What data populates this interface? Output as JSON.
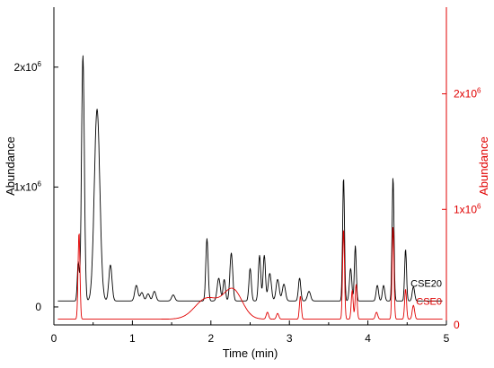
{
  "chart_data": {
    "type": "line",
    "xlabel": "Time (min)",
    "xlim": [
      0,
      5
    ],
    "xticks": [
      {
        "value": 0,
        "label": "0"
      },
      {
        "value": 1,
        "label": "1"
      },
      {
        "value": 2,
        "label": "2"
      },
      {
        "value": 3,
        "label": "3"
      },
      {
        "value": 4,
        "label": "4"
      },
      {
        "value": 5,
        "label": "5"
      }
    ],
    "y_left": {
      "label": "Abundance",
      "color": "#000000",
      "ylim": [
        -150000,
        2500000
      ],
      "ticks": [
        {
          "value": 0,
          "label": "0",
          "exp": ""
        },
        {
          "value": 1000000,
          "label": "1x10",
          "exp": "6"
        },
        {
          "value": 2000000,
          "label": "2x10",
          "exp": "6"
        }
      ]
    },
    "y_right": {
      "label": "Abundance",
      "color": "#e00000",
      "ylim": [
        0,
        2750000
      ],
      "ticks": [
        {
          "value": 0,
          "label": "0",
          "exp": ""
        },
        {
          "value": 1000000,
          "label": "1x10",
          "exp": "6"
        },
        {
          "value": 2000000,
          "label": "2x10",
          "exp": "6"
        }
      ]
    },
    "series": [
      {
        "name": "CSE20",
        "axis": "left",
        "color": "#000000",
        "baseline": 50000,
        "peaks": [
          [
            0.31,
            320000,
            0.012
          ],
          [
            0.37,
            2050000,
            0.018
          ],
          [
            0.55,
            1600000,
            0.035
          ],
          [
            0.72,
            300000,
            0.02
          ],
          [
            1.05,
            130000,
            0.02
          ],
          [
            1.12,
            70000,
            0.02
          ],
          [
            1.2,
            60000,
            0.02
          ],
          [
            1.28,
            80000,
            0.02
          ],
          [
            1.52,
            50000,
            0.02
          ],
          [
            1.95,
            520000,
            0.015
          ],
          [
            2.1,
            190000,
            0.02
          ],
          [
            2.17,
            180000,
            0.015
          ],
          [
            2.26,
            400000,
            0.018
          ],
          [
            2.5,
            270000,
            0.015
          ],
          [
            2.62,
            380000,
            0.015
          ],
          [
            2.68,
            380000,
            0.015
          ],
          [
            2.75,
            230000,
            0.02
          ],
          [
            2.85,
            180000,
            0.02
          ],
          [
            2.93,
            140000,
            0.02
          ],
          [
            3.13,
            190000,
            0.015
          ],
          [
            3.25,
            80000,
            0.02
          ],
          [
            3.69,
            1030000,
            0.012
          ],
          [
            3.78,
            270000,
            0.015
          ],
          [
            3.84,
            460000,
            0.012
          ],
          [
            4.12,
            130000,
            0.015
          ],
          [
            4.2,
            130000,
            0.015
          ],
          [
            4.32,
            1030000,
            0.012
          ],
          [
            4.48,
            430000,
            0.012
          ],
          [
            4.58,
            120000,
            0.015
          ]
        ]
      },
      {
        "name": "CSE0",
        "axis": "right",
        "color": "#e00000",
        "baseline": 50000,
        "peaks": [
          [
            0.32,
            750000,
            0.012
          ],
          [
            1.95,
            180000,
            0.15
          ],
          [
            2.28,
            250000,
            0.12
          ],
          [
            2.72,
            60000,
            0.015
          ],
          [
            2.85,
            50000,
            0.015
          ],
          [
            3.14,
            200000,
            0.012
          ],
          [
            3.69,
            780000,
            0.012
          ],
          [
            3.8,
            250000,
            0.012
          ],
          [
            3.85,
            300000,
            0.012
          ],
          [
            4.11,
            60000,
            0.015
          ],
          [
            4.32,
            800000,
            0.012
          ],
          [
            4.48,
            260000,
            0.012
          ],
          [
            4.58,
            120000,
            0.015
          ]
        ]
      }
    ]
  }
}
